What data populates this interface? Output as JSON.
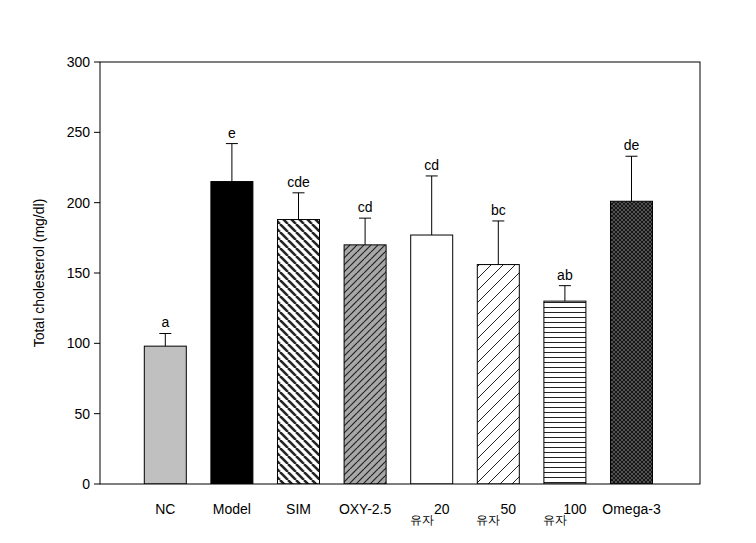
{
  "chart_data": {
    "type": "bar",
    "y_label": "Total cholesterol (mg/dl)",
    "categories": [
      "NC",
      "Model",
      "SIM",
      "OXY-2.5",
      "유자 20",
      "유자 50",
      "유자 100",
      "Omega-3"
    ],
    "values": [
      98,
      215,
      188,
      170,
      177,
      156,
      130,
      201
    ],
    "errors": [
      9,
      27,
      19,
      19,
      42,
      31,
      11,
      32
    ],
    "annotations": [
      "a",
      "e",
      "cde",
      "cd",
      "cd",
      "bc",
      "ab",
      "de"
    ],
    "colors": [
      "#c0c0c0",
      "#000000",
      "#ffffff",
      "#a8a8a8",
      "#ffffff",
      "#ffffff",
      "#ffffff",
      "#505050"
    ],
    "ylim": [
      0,
      300
    ],
    "yticks": [
      0,
      50,
      100,
      150,
      200,
      250,
      300
    ],
    "grid": false
  }
}
